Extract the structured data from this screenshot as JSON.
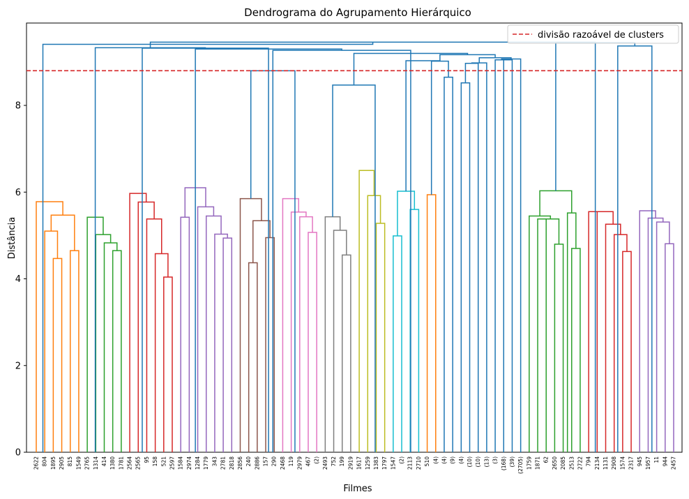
{
  "chart_data": {
    "type": "dendrogram",
    "title": "Dendrograma do Agrupamento Hierárquico",
    "xlabel": "Filmes",
    "ylabel": "Distância",
    "ylim": [
      0,
      9.9
    ],
    "yticks": [
      0,
      2,
      4,
      6,
      8
    ],
    "legend": {
      "placement": "top-right",
      "entries": [
        {
          "label": "divisão razoável de clusters",
          "style": "dashed",
          "color": "#d62728"
        }
      ]
    },
    "cut_height": 8.8,
    "leaf_labels": [
      "2622",
      "804",
      "1895",
      "2905",
      "815",
      "1549",
      "2765",
      "1314",
      "414",
      "1380",
      "1781",
      "2564",
      "2565",
      "95",
      "158",
      "521",
      "2597",
      "1584",
      "2974",
      "1284",
      "1779",
      "343",
      "2781",
      "2818",
      "2856",
      "240",
      "2886",
      "157",
      "290",
      "2468",
      "119",
      "2979",
      "467",
      "(2)",
      "2493",
      "752",
      "199",
      "2919",
      "1617",
      "1259",
      "1383",
      "1797",
      "1547",
      "(2)",
      "2113",
      "2710",
      "510",
      "(4)",
      "(4)",
      "(9)",
      "(4)",
      "(10)",
      "(10)",
      "(13)",
      "(3)",
      "(168)",
      "(39)",
      "(2705)",
      "1759",
      "1871",
      "62",
      "2650",
      "2085",
      "2513",
      "2722",
      "794",
      "2134",
      "1131",
      "2908",
      "1574",
      "2317",
      "945",
      "1957",
      "11",
      "944",
      "2457"
    ],
    "colors": {
      "C0": "#1f77b4",
      "C1": "#ff7f0e",
      "C2": "#2ca02c",
      "C3": "#d62728",
      "C4": "#9467bd",
      "C5": "#8c564b",
      "C6": "#e377c2",
      "C7": "#7f7f7f",
      "C8": "#bcbd22",
      "C9": "#17becf",
      "cut_line": "#d62728"
    },
    "links": [
      {
        "x": [
          2,
          3
        ],
        "h": 4.47,
        "c": "C1"
      },
      {
        "x": [
          1,
          2.5
        ],
        "h": 5.1,
        "c": "C1"
      },
      {
        "x": [
          4,
          5
        ],
        "h": 4.65,
        "c": "C1"
      },
      {
        "x": [
          1.75,
          4.5
        ],
        "h": 5.47,
        "c": "C1"
      },
      {
        "x": [
          0,
          3.125
        ],
        "h": 5.78,
        "c": "C1"
      },
      {
        "x": [
          9,
          10
        ],
        "h": 4.65,
        "c": "C2"
      },
      {
        "x": [
          8,
          9.5
        ],
        "h": 4.83,
        "c": "C2"
      },
      {
        "x": [
          7,
          8.75
        ],
        "h": 5.02,
        "c": "C2"
      },
      {
        "x": [
          6,
          7.875
        ],
        "h": 5.42,
        "c": "C2"
      },
      {
        "x": [
          15,
          16
        ],
        "h": 4.04,
        "c": "C3"
      },
      {
        "x": [
          14,
          15.5
        ],
        "h": 4.58,
        "c": "C3"
      },
      {
        "x": [
          13,
          14.75
        ],
        "h": 5.38,
        "c": "C3"
      },
      {
        "x": [
          12,
          13.875
        ],
        "h": 5.77,
        "c": "C3"
      },
      {
        "x": [
          11,
          12.9375
        ],
        "h": 5.97,
        "c": "C3"
      },
      {
        "x": [
          22,
          23
        ],
        "h": 4.94,
        "c": "C4"
      },
      {
        "x": [
          21,
          22.5
        ],
        "h": 5.03,
        "c": "C4"
      },
      {
        "x": [
          20,
          21.75
        ],
        "h": 5.45,
        "c": "C4"
      },
      {
        "x": [
          19,
          20.875
        ],
        "h": 5.66,
        "c": "C4"
      },
      {
        "x": [
          17,
          18
        ],
        "h": 5.42,
        "c": "C4"
      },
      {
        "x": [
          17.5,
          19.9375
        ],
        "h": 6.1,
        "c": "C4"
      },
      {
        "x": [
          25,
          26
        ],
        "h": 4.37,
        "c": "C5"
      },
      {
        "x": [
          27,
          28
        ],
        "h": 4.95,
        "c": "C5"
      },
      {
        "x": [
          25.5,
          27.5
        ],
        "h": 5.34,
        "c": "C5"
      },
      {
        "x": [
          24,
          26.5
        ],
        "h": 5.85,
        "c": "C5"
      },
      {
        "x": [
          32,
          33
        ],
        "h": 5.07,
        "c": "C6"
      },
      {
        "x": [
          31,
          32.5
        ],
        "h": 5.43,
        "c": "C6"
      },
      {
        "x": [
          30,
          31.75
        ],
        "h": 5.54,
        "c": "C6"
      },
      {
        "x": [
          29,
          30.875
        ],
        "h": 5.85,
        "c": "C6"
      },
      {
        "x": [
          36,
          37
        ],
        "h": 4.55,
        "c": "C7"
      },
      {
        "x": [
          35,
          36.5
        ],
        "h": 5.12,
        "c": "C7"
      },
      {
        "x": [
          34,
          35.75
        ],
        "h": 5.43,
        "c": "C7"
      },
      {
        "x": [
          40,
          41
        ],
        "h": 5.28,
        "c": "C8"
      },
      {
        "x": [
          39,
          40.5
        ],
        "h": 5.92,
        "c": "C8"
      },
      {
        "x": [
          38,
          39.75
        ],
        "h": 6.5,
        "c": "C8"
      },
      {
        "x": [
          44,
          45
        ],
        "h": 5.6,
        "c": "C9"
      },
      {
        "x": [
          42,
          43
        ],
        "h": 4.99,
        "c": "C9"
      },
      {
        "x": [
          42.5,
          44.5
        ],
        "h": 6.02,
        "c": "C9"
      },
      {
        "x": [
          46,
          47
        ],
        "h": 5.94,
        "c": "C1"
      },
      {
        "x": [
          59,
          60
        ],
        "h": 5.38,
        "c": "C2"
      },
      {
        "x": [
          61,
          62
        ],
        "h": 4.8,
        "c": "C2"
      },
      {
        "x": [
          59.5,
          61.5
        ],
        "h": 5.38,
        "c": "C2"
      },
      {
        "x": [
          58,
          60.5
        ],
        "h": 5.45,
        "c": "C2"
      },
      {
        "x": [
          63,
          64
        ],
        "h": 4.7,
        "c": "C2"
      },
      {
        "x": [
          62.5,
          63.5
        ],
        "h": 5.52,
        "c": "C2"
      },
      {
        "x": [
          59.25,
          63
        ],
        "h": 6.03,
        "c": "C2"
      },
      {
        "x": [
          69,
          70
        ],
        "h": 4.63,
        "c": "C3"
      },
      {
        "x": [
          68,
          69.5
        ],
        "h": 5.02,
        "c": "C3"
      },
      {
        "x": [
          67,
          68.75
        ],
        "h": 5.26,
        "c": "C3"
      },
      {
        "x": [
          66,
          67.875
        ],
        "h": 5.55,
        "c": "C3"
      },
      {
        "x": [
          65,
          66.9375
        ],
        "h": 5.55,
        "c": "C3"
      },
      {
        "x": [
          74,
          75
        ],
        "h": 4.81,
        "c": "C4"
      },
      {
        "x": [
          73,
          74.5
        ],
        "h": 5.31,
        "c": "C4"
      },
      {
        "x": [
          72,
          73.75
        ],
        "h": 5.4,
        "c": "C4"
      },
      {
        "x": [
          71,
          72.875
        ],
        "h": 5.57,
        "c": "C4"
      },
      {
        "x": [
          0,
          1
        ],
        "h": 0,
        "c": "C0",
        "skip": true
      },
      {
        "x": [
          1.5625,
          1.5625
        ],
        "h": 5.78,
        "c": "C0",
        "skip": true
      },
      {
        "x": [
          34.875,
          39.875
        ],
        "h": 8.47,
        "c": "C0"
      },
      {
        "x": [
          25.25,
          30.4375
        ],
        "h": 8.8,
        "c": "C0"
      },
      {
        "x": [
          48,
          49
        ],
        "h": 8.65,
        "c": "C0"
      },
      {
        "x": [
          46.5,
          48.5
        ],
        "h": 9.02,
        "c": "C0"
      },
      {
        "x": [
          50,
          51
        ],
        "h": 8.52,
        "c": "C0"
      },
      {
        "x": [
          50.5,
          52
        ],
        "h": 8.97,
        "c": "C0"
      },
      {
        "x": [
          51.25,
          53
        ],
        "h": 8.98,
        "c": "C0"
      },
      {
        "x": [
          55,
          56
        ],
        "h": 9.05,
        "c": "C0"
      },
      {
        "x": [
          54,
          55.5
        ],
        "h": 9.05,
        "c": "C0"
      },
      {
        "x": [
          57,
          54.75
        ],
        "h": 9.07,
        "c": "C0"
      },
      {
        "x": [
          52.125,
          55.875
        ],
        "h": 9.1,
        "c": "C0"
      },
      {
        "x": [
          43.5,
          47.5
        ],
        "h": 9.03,
        "c": "C0"
      },
      {
        "x": [
          47.5,
          54
        ],
        "h": 9.17,
        "c": "C0"
      },
      {
        "x": [
          37.375,
          50.75
        ],
        "h": 9.2,
        "c": "C0"
      },
      {
        "x": [
          27.84,
          44.06
        ],
        "h": 9.27,
        "c": "C0"
      },
      {
        "x": [
          18.72,
          35.95
        ],
        "h": 9.3,
        "c": "C0"
      },
      {
        "x": [
          12.47,
          27.33
        ],
        "h": 9.32,
        "c": "C0"
      },
      {
        "x": [
          6.94,
          19.9
        ],
        "h": 9.33,
        "c": "C0"
      },
      {
        "x": [
          68.42,
          72.44
        ],
        "h": 9.37,
        "c": "C0"
      },
      {
        "x": [
          61.125,
          70.43
        ],
        "h": 9.45,
        "c": "C0"
      },
      {
        "x": [
          13.42,
          65.78
        ],
        "h": 9.46,
        "c": "C0"
      },
      {
        "x": [
          0.78,
          39.6
        ],
        "h": 9.41,
        "c": "C0"
      }
    ]
  }
}
